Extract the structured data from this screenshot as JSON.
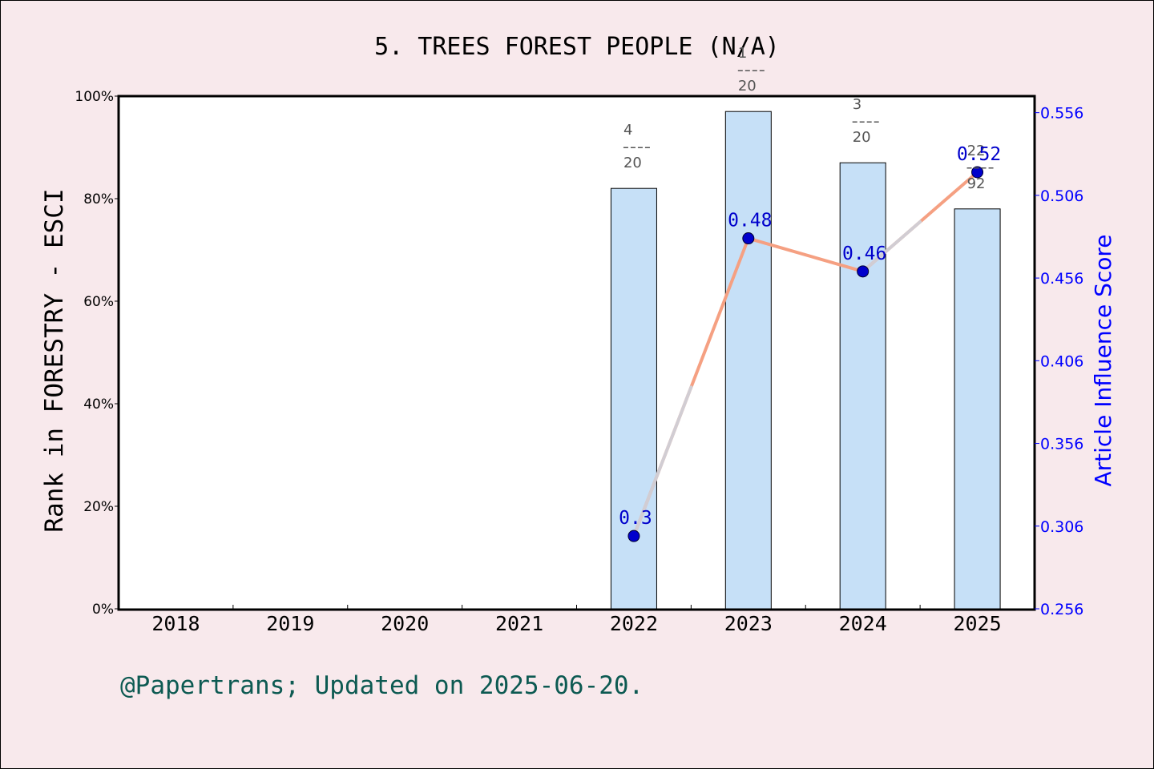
{
  "footer_text": "@Papertrans; Updated on 2025-06-20.",
  "colors": {
    "background": "#f8e9ec",
    "bar_fill": "#c6e0f7",
    "bar_stroke": "#000000",
    "line": "#f5a082",
    "point": "#0000cc",
    "right_axis": "#0000ff",
    "footer": "#0d5a52"
  },
  "chart_data": {
    "type": "bar",
    "title": "5. TREES FOREST PEOPLE (N/A)",
    "categories": [
      "2018",
      "2019",
      "2020",
      "2021",
      "2022",
      "2023",
      "2024",
      "2025"
    ],
    "ylabel": "Rank in FORESTRY - ESCI",
    "ylim": [
      0,
      100
    ],
    "y_ticks": [
      "0%",
      "20%",
      "40%",
      "60%",
      "80%",
      "100%"
    ],
    "y2label": "Article Influence Score",
    "y2lim": [
      0.256,
      0.566
    ],
    "y2_ticks": [
      "0.256",
      "0.306",
      "0.356",
      "0.406",
      "0.456",
      "0.506",
      "0.556"
    ],
    "grid": false,
    "series": [
      {
        "kind": "bar",
        "axis": "left",
        "values": [
          null,
          null,
          null,
          null,
          82,
          97,
          87,
          78
        ],
        "labels": [
          null,
          null,
          null,
          null,
          {
            "num": "4",
            "den": "20"
          },
          {
            "num": "1",
            "den": "20"
          },
          {
            "num": "3",
            "den": "20"
          },
          {
            "num": "22",
            "den": "92"
          }
        ]
      },
      {
        "kind": "line",
        "axis": "right",
        "values": [
          null,
          null,
          null,
          null,
          0.3,
          0.48,
          0.46,
          0.52
        ],
        "labels": [
          null,
          null,
          null,
          null,
          "0.3",
          "0.48",
          "0.46",
          "0.52"
        ]
      }
    ]
  }
}
